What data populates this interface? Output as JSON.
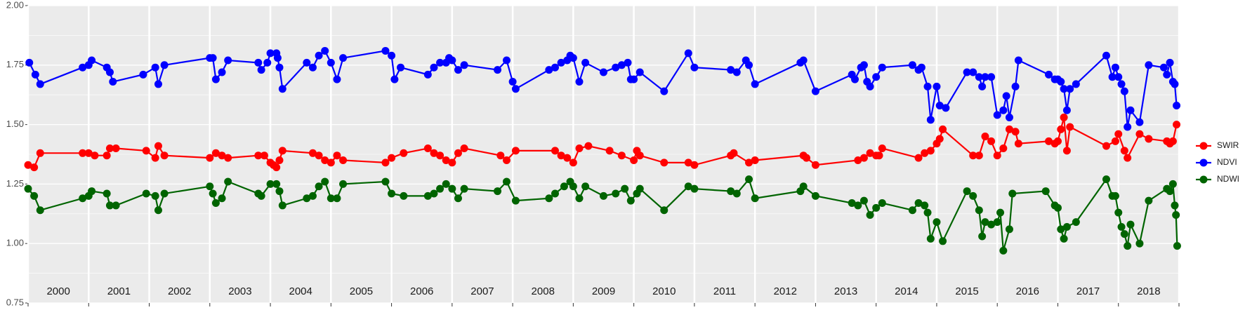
{
  "chart_data": {
    "type": "line",
    "xlim": [
      2000,
      2019
    ],
    "xticks": [
      2000,
      2001,
      2002,
      2003,
      2004,
      2005,
      2006,
      2007,
      2008,
      2009,
      2010,
      2011,
      2012,
      2013,
      2014,
      2015,
      2016,
      2017,
      2018,
      2019
    ],
    "year_labels": [
      "2000",
      "2001",
      "2002",
      "2003",
      "2004",
      "2005",
      "2006",
      "2007",
      "2008",
      "2009",
      "2010",
      "2011",
      "2012",
      "2013",
      "2014",
      "2015",
      "2016",
      "2017",
      "2018"
    ],
    "ylim": [
      0.75,
      2.0
    ],
    "yticks": [
      {
        "value": 0.75,
        "label": "0.75"
      },
      {
        "value": 1,
        "label": "1.00"
      },
      {
        "value": 1.25,
        "label": "1.25"
      },
      {
        "value": 1.5,
        "label": "1.50"
      },
      {
        "value": 1.75,
        "label": "1.75"
      },
      {
        "value": 2,
        "label": "2.00"
      }
    ],
    "grid": true,
    "series": [
      {
        "name": "SWIR",
        "color": "#ff0000",
        "x": [
          2000.0,
          2000.1,
          2000.2,
          2000.9,
          2001.0,
          2001.1,
          2001.3,
          2001.35,
          2001.45,
          2001.95,
          2002.1,
          2002.15,
          2002.25,
          2003.0,
          2003.1,
          2003.2,
          2003.3,
          2003.8,
          2003.9,
          2004.0,
          2004.05,
          2004.1,
          2004.15,
          2004.2,
          2004.7,
          2004.8,
          2004.9,
          2005.0,
          2005.1,
          2005.2,
          2005.9,
          2006.0,
          2006.2,
          2006.6,
          2006.7,
          2006.8,
          2006.9,
          2007.0,
          2007.1,
          2007.2,
          2007.8,
          2007.9,
          2008.05,
          2008.7,
          2008.8,
          2008.9,
          2009.0,
          2009.1,
          2009.25,
          2009.6,
          2009.8,
          2010.0,
          2010.05,
          2010.1,
          2010.5,
          2010.9,
          2011.0,
          2011.6,
          2011.65,
          2011.9,
          2012.0,
          2012.8,
          2012.85,
          2013.0,
          2013.7,
          2013.8,
          2013.9,
          2014.0,
          2014.05,
          2014.1,
          2014.7,
          2014.8,
          2014.9,
          2015.0,
          2015.05,
          2015.1,
          2015.6,
          2015.7,
          2015.8,
          2015.9,
          2016.0,
          2016.1,
          2016.2,
          2016.3,
          2016.35,
          2016.85,
          2016.95,
          2017.0,
          2017.05,
          2017.1,
          2017.15,
          2017.2,
          2017.8,
          2017.95,
          2018.0,
          2018.1,
          2018.15,
          2018.35,
          2018.5,
          2018.8,
          2018.85,
          2018.9,
          2018.96
        ],
        "values": [
          1.33,
          1.32,
          1.38,
          1.38,
          1.38,
          1.37,
          1.37,
          1.4,
          1.4,
          1.39,
          1.36,
          1.41,
          1.37,
          1.36,
          1.38,
          1.37,
          1.36,
          1.37,
          1.37,
          1.34,
          1.33,
          1.32,
          1.35,
          1.39,
          1.38,
          1.37,
          1.35,
          1.34,
          1.37,
          1.35,
          1.34,
          1.36,
          1.38,
          1.4,
          1.38,
          1.37,
          1.35,
          1.34,
          1.38,
          1.4,
          1.37,
          1.35,
          1.39,
          1.39,
          1.37,
          1.36,
          1.34,
          1.4,
          1.41,
          1.39,
          1.37,
          1.35,
          1.39,
          1.37,
          1.34,
          1.34,
          1.33,
          1.37,
          1.38,
          1.34,
          1.35,
          1.37,
          1.36,
          1.33,
          1.35,
          1.36,
          1.38,
          1.37,
          1.37,
          1.4,
          1.36,
          1.38,
          1.39,
          1.42,
          1.44,
          1.48,
          1.37,
          1.37,
          1.45,
          1.43,
          1.37,
          1.4,
          1.48,
          1.47,
          1.42,
          1.43,
          1.42,
          1.43,
          1.48,
          1.53,
          1.39,
          1.49,
          1.41,
          1.43,
          1.46,
          1.39,
          1.36,
          1.46,
          1.44,
          1.43,
          1.42,
          1.43,
          1.5
        ]
      },
      {
        "name": "NDVI",
        "color": "#0000ff",
        "x": [
          2000.02,
          2000.12,
          2000.2,
          2000.9,
          2001.0,
          2001.05,
          2001.3,
          2001.35,
          2001.4,
          2001.9,
          2002.1,
          2002.15,
          2002.25,
          2003.0,
          2003.05,
          2003.1,
          2003.2,
          2003.3,
          2003.8,
          2003.85,
          2003.95,
          2004.0,
          2004.1,
          2004.12,
          2004.15,
          2004.2,
          2004.6,
          2004.7,
          2004.8,
          2004.9,
          2005.0,
          2005.1,
          2005.2,
          2005.9,
          2006.0,
          2006.05,
          2006.15,
          2006.6,
          2006.7,
          2006.8,
          2006.9,
          2006.95,
          2007.0,
          2007.1,
          2007.2,
          2007.75,
          2007.9,
          2008.0,
          2008.05,
          2008.6,
          2008.7,
          2008.8,
          2008.9,
          2008.95,
          2009.0,
          2009.1,
          2009.2,
          2009.5,
          2009.7,
          2009.8,
          2009.9,
          2009.95,
          2010.0,
          2010.1,
          2010.5,
          2010.9,
          2011.0,
          2011.6,
          2011.7,
          2011.85,
          2011.9,
          2012.0,
          2012.75,
          2012.8,
          2013.0,
          2013.6,
          2013.65,
          2013.75,
          2013.8,
          2013.85,
          2013.9,
          2014.0,
          2014.1,
          2014.6,
          2014.7,
          2014.75,
          2014.85,
          2014.9,
          2015.0,
          2015.05,
          2015.15,
          2015.5,
          2015.6,
          2015.7,
          2015.75,
          2015.8,
          2015.9,
          2016.0,
          2016.1,
          2016.15,
          2016.2,
          2016.3,
          2016.35,
          2016.85,
          2016.95,
          2017.0,
          2017.05,
          2017.1,
          2017.15,
          2017.2,
          2017.3,
          2017.8,
          2017.9,
          2017.95,
          2018.0,
          2018.05,
          2018.1,
          2018.15,
          2018.2,
          2018.35,
          2018.5,
          2018.75,
          2018.8,
          2018.85,
          2018.9,
          2018.93,
          2018.96
        ],
        "values": [
          1.76,
          1.71,
          1.67,
          1.74,
          1.75,
          1.77,
          1.74,
          1.72,
          1.68,
          1.71,
          1.74,
          1.67,
          1.75,
          1.78,
          1.78,
          1.69,
          1.72,
          1.77,
          1.76,
          1.73,
          1.76,
          1.8,
          1.8,
          1.78,
          1.74,
          1.65,
          1.76,
          1.74,
          1.79,
          1.81,
          1.76,
          1.69,
          1.78,
          1.81,
          1.79,
          1.69,
          1.74,
          1.71,
          1.74,
          1.76,
          1.76,
          1.78,
          1.77,
          1.73,
          1.75,
          1.73,
          1.77,
          1.68,
          1.65,
          1.73,
          1.74,
          1.76,
          1.77,
          1.79,
          1.78,
          1.68,
          1.76,
          1.72,
          1.74,
          1.75,
          1.76,
          1.69,
          1.69,
          1.72,
          1.64,
          1.8,
          1.74,
          1.73,
          1.72,
          1.77,
          1.75,
          1.67,
          1.76,
          1.77,
          1.64,
          1.71,
          1.69,
          1.74,
          1.75,
          1.68,
          1.66,
          1.7,
          1.74,
          1.75,
          1.73,
          1.74,
          1.66,
          1.52,
          1.66,
          1.58,
          1.57,
          1.72,
          1.72,
          1.7,
          1.66,
          1.7,
          1.7,
          1.54,
          1.56,
          1.62,
          1.53,
          1.66,
          1.77,
          1.71,
          1.69,
          1.69,
          1.68,
          1.65,
          1.56,
          1.65,
          1.67,
          1.79,
          1.7,
          1.74,
          1.7,
          1.67,
          1.64,
          1.49,
          1.56,
          1.51,
          1.75,
          1.74,
          1.71,
          1.76,
          1.68,
          1.67,
          1.58
        ]
      },
      {
        "name": "NDWI",
        "color": "#006400",
        "x": [
          2000.0,
          2000.1,
          2000.2,
          2000.9,
          2001.0,
          2001.05,
          2001.3,
          2001.35,
          2001.45,
          2001.95,
          2002.1,
          2002.15,
          2002.25,
          2003.0,
          2003.05,
          2003.1,
          2003.2,
          2003.3,
          2003.8,
          2003.85,
          2004.0,
          2004.1,
          2004.15,
          2004.2,
          2004.6,
          2004.7,
          2004.8,
          2004.9,
          2005.0,
          2005.1,
          2005.2,
          2005.9,
          2006.0,
          2006.2,
          2006.6,
          2006.7,
          2006.8,
          2006.9,
          2007.0,
          2007.1,
          2007.2,
          2007.75,
          2007.9,
          2008.05,
          2008.6,
          2008.7,
          2008.85,
          2008.95,
          2009.0,
          2009.1,
          2009.2,
          2009.5,
          2009.7,
          2009.85,
          2009.95,
          2010.05,
          2010.1,
          2010.5,
          2010.9,
          2011.0,
          2011.6,
          2011.7,
          2011.9,
          2012.0,
          2012.75,
          2012.8,
          2013.0,
          2013.6,
          2013.7,
          2013.8,
          2013.9,
          2014.0,
          2014.1,
          2014.6,
          2014.7,
          2014.8,
          2014.85,
          2014.9,
          2015.0,
          2015.1,
          2015.5,
          2015.6,
          2015.7,
          2015.75,
          2015.8,
          2015.9,
          2016.0,
          2016.05,
          2016.1,
          2016.2,
          2016.25,
          2016.8,
          2016.95,
          2017.0,
          2017.05,
          2017.1,
          2017.15,
          2017.3,
          2017.8,
          2017.9,
          2017.95,
          2018.0,
          2018.05,
          2018.1,
          2018.15,
          2018.2,
          2018.35,
          2018.5,
          2018.8,
          2018.85,
          2018.9,
          2018.93,
          2018.95,
          2018.97
        ],
        "values": [
          1.23,
          1.2,
          1.14,
          1.19,
          1.2,
          1.22,
          1.21,
          1.16,
          1.16,
          1.21,
          1.2,
          1.14,
          1.21,
          1.24,
          1.21,
          1.17,
          1.19,
          1.26,
          1.21,
          1.2,
          1.25,
          1.25,
          1.22,
          1.16,
          1.19,
          1.2,
          1.24,
          1.26,
          1.19,
          1.19,
          1.25,
          1.26,
          1.21,
          1.2,
          1.2,
          1.21,
          1.23,
          1.25,
          1.23,
          1.19,
          1.23,
          1.22,
          1.26,
          1.18,
          1.19,
          1.21,
          1.24,
          1.26,
          1.24,
          1.19,
          1.24,
          1.2,
          1.21,
          1.23,
          1.18,
          1.21,
          1.23,
          1.14,
          1.24,
          1.23,
          1.22,
          1.21,
          1.27,
          1.19,
          1.22,
          1.24,
          1.2,
          1.17,
          1.16,
          1.18,
          1.12,
          1.15,
          1.17,
          1.14,
          1.17,
          1.16,
          1.13,
          1.02,
          1.09,
          1.01,
          1.22,
          1.2,
          1.14,
          1.03,
          1.09,
          1.08,
          1.09,
          1.13,
          0.97,
          1.06,
          1.21,
          1.22,
          1.16,
          1.15,
          1.06,
          1.02,
          1.07,
          1.09,
          1.27,
          1.2,
          1.2,
          1.13,
          1.07,
          1.04,
          0.99,
          1.08,
          1.0,
          1.18,
          1.23,
          1.22,
          1.25,
          1.16,
          1.12,
          0.99
        ]
      }
    ]
  }
}
